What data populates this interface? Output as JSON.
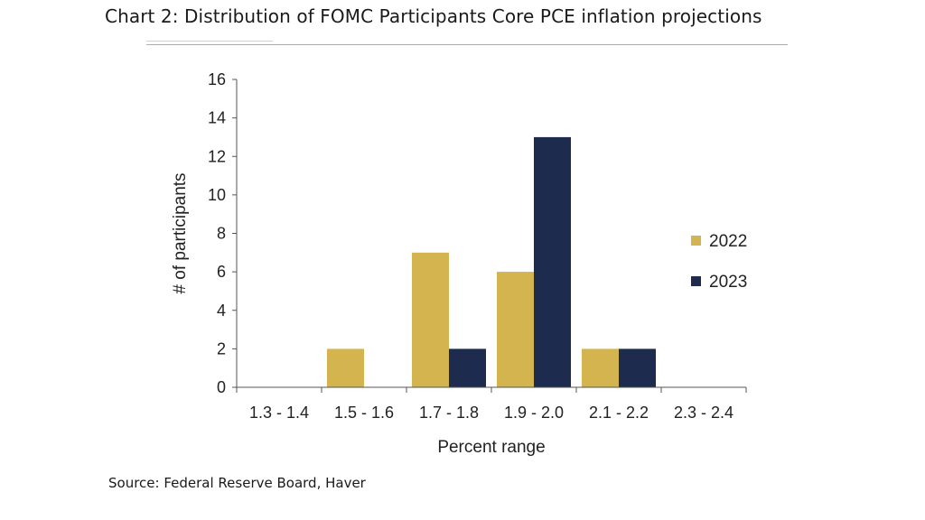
{
  "page": {
    "title": "Chart 2: Distribution of FOMC Participants Core PCE inflation projections",
    "source": "Source: Federal Reserve Board, Haver"
  },
  "chart_data": {
    "type": "bar",
    "title": "Chart 2: Distribution of FOMC Participants Core PCE inflation projections",
    "xlabel": "Percent range",
    "ylabel": "# of participants",
    "categories": [
      "1.3 - 1.4",
      "1.5 - 1.6",
      "1.7 - 1.8",
      "1.9 - 2.0",
      "2.1 - 2.2",
      "2.3 - 2.4"
    ],
    "series": [
      {
        "name": "2022",
        "color": "#d4b44f",
        "values": [
          0,
          2,
          7,
          6,
          2,
          0
        ]
      },
      {
        "name": "2023",
        "color": "#1c2b4e",
        "values": [
          0,
          0,
          2,
          13,
          2,
          0
        ]
      }
    ],
    "ylim": [
      0,
      16
    ],
    "yticks": [
      0,
      2,
      4,
      6,
      8,
      10,
      12,
      14,
      16
    ],
    "grid": false,
    "legend_position": "right"
  }
}
